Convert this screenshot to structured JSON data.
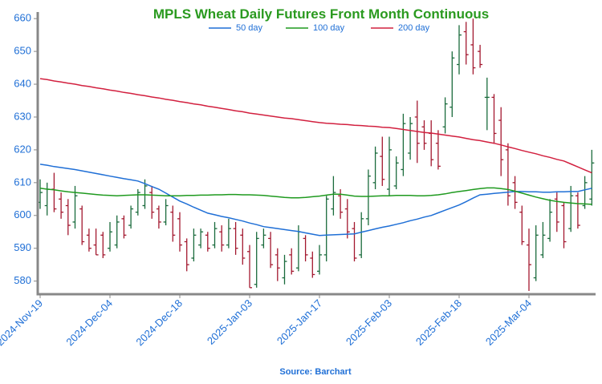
{
  "chart_data": {
    "type": "ohlc",
    "title": "MPLS Wheat Daily Futures Front Month Continuous",
    "source": "Source: Barchart",
    "categories": [
      "2024-Nov-19",
      null,
      null,
      null,
      null,
      null,
      null,
      null,
      null,
      null,
      "2024-Dec-04",
      null,
      null,
      null,
      null,
      null,
      null,
      null,
      null,
      null,
      "2024-Dec-18",
      null,
      null,
      null,
      null,
      null,
      null,
      null,
      null,
      null,
      "2025-Jan-03",
      null,
      null,
      null,
      null,
      null,
      null,
      null,
      null,
      null,
      "2025-Jan-17",
      null,
      null,
      null,
      null,
      null,
      null,
      null,
      null,
      null,
      "2025-Feb-03",
      null,
      null,
      null,
      null,
      null,
      null,
      null,
      null,
      null,
      "2025-Feb-18",
      null,
      null,
      null,
      null,
      null,
      null,
      null,
      null,
      null,
      "2025-Mar-04",
      null,
      null,
      null,
      null,
      null,
      null,
      null,
      null,
      null
    ],
    "open": [
      604,
      603,
      608,
      605,
      603,
      598,
      602,
      594,
      591,
      594,
      590,
      591,
      599,
      597,
      601,
      603,
      607,
      602,
      598,
      601,
      599,
      592,
      587,
      591,
      594,
      591,
      595,
      591,
      596,
      594,
      589,
      579,
      591,
      593,
      588,
      581,
      588,
      584,
      593,
      587,
      583,
      588,
      602,
      606,
      602,
      596,
      588,
      599,
      610,
      618,
      608,
      609,
      614,
      619,
      630,
      627,
      625,
      622,
      627,
      633,
      646,
      656,
      652,
      650,
      636,
      636,
      629,
      620,
      610,
      601,
      591,
      581,
      588,
      593,
      605,
      603,
      596,
      606,
      603,
      605
    ],
    "high": [
      611,
      610,
      613,
      607,
      605,
      609,
      603,
      596,
      596,
      595,
      598,
      600,
      600,
      603,
      608,
      611,
      609,
      603,
      605,
      603,
      601,
      593,
      596,
      596,
      595,
      598,
      597,
      599,
      598,
      596,
      591,
      595,
      596,
      595,
      590,
      588,
      590,
      597,
      594,
      589,
      591,
      606,
      612,
      608,
      605,
      598,
      601,
      614,
      621,
      624,
      624,
      618,
      631,
      630,
      635,
      629,
      629,
      626,
      636,
      650,
      658,
      659,
      660,
      652,
      642,
      637,
      633,
      622,
      612,
      603,
      596,
      597,
      598,
      605,
      607,
      604,
      609,
      607,
      612,
      620
    ],
    "low": [
      602,
      600,
      601,
      599,
      594,
      596,
      591,
      589,
      588,
      587,
      589,
      590,
      593,
      596,
      600,
      602,
      599,
      596,
      597,
      592,
      589,
      583,
      586,
      590,
      589,
      590,
      589,
      590,
      588,
      585,
      578,
      578,
      590,
      584,
      580,
      579,
      582,
      583,
      586,
      581,
      582,
      586,
      600,
      599,
      593,
      586,
      587,
      597,
      608,
      609,
      606,
      608,
      612,
      617,
      616,
      620,
      615,
      614,
      625,
      630,
      643,
      646,
      643,
      645,
      626,
      622,
      612,
      603,
      602,
      591,
      577,
      580,
      587,
      592,
      595,
      590,
      595,
      596,
      602,
      603
    ],
    "close": [
      607,
      608,
      602,
      601,
      597,
      606,
      592,
      590,
      588,
      588,
      595,
      598,
      594,
      602,
      607,
      609,
      601,
      598,
      603,
      594,
      591,
      585,
      594,
      595,
      590,
      596,
      591,
      596,
      590,
      587,
      578,
      593,
      594,
      585,
      584,
      586,
      583,
      595,
      588,
      582,
      588,
      605,
      607,
      601,
      595,
      587,
      599,
      612,
      619,
      611,
      620,
      616,
      628,
      628,
      622,
      622,
      617,
      615,
      634,
      648,
      655,
      649,
      645,
      646,
      636,
      625,
      617,
      606,
      604,
      592,
      585,
      594,
      594,
      601,
      598,
      592,
      606,
      597,
      610,
      616
    ],
    "up_color": "#1a6b3c",
    "down_color": "#a3182f",
    "series": [
      {
        "name": "50 day",
        "color": "#1f6fd6",
        "values": [
          615.6,
          615.3,
          614.9,
          614.6,
          614.3,
          614.0,
          613.6,
          613.2,
          612.8,
          612.4,
          612.0,
          611.6,
          611.2,
          610.9,
          610.5,
          609.7,
          608.8,
          608.0,
          606.8,
          605.6,
          604.4,
          603.5,
          602.5,
          601.6,
          600.7,
          600.2,
          599.7,
          599.3,
          598.8,
          598.3,
          597.7,
          597.2,
          596.6,
          596.3,
          596.0,
          595.7,
          595.4,
          595.1,
          594.7,
          594.3,
          593.9,
          594.0,
          594.1,
          594.2,
          594.3,
          594.4,
          594.9,
          595.4,
          595.9,
          596.4,
          596.8,
          597.3,
          597.8,
          598.4,
          598.9,
          599.5,
          600.0,
          600.8,
          601.6,
          602.4,
          603.2,
          604.2,
          605.3,
          606.3,
          606.5,
          606.7,
          606.9,
          607.1,
          607.3,
          607.3,
          607.2,
          607.2,
          607.1,
          607.1,
          607.2,
          607.2,
          607.3,
          607.3,
          607.8,
          608.3
        ]
      },
      {
        "name": "100 day",
        "color": "#1f9a1f",
        "values": [
          608.3,
          608.0,
          607.8,
          607.5,
          607.2,
          607.0,
          606.8,
          606.6,
          606.4,
          606.2,
          606.1,
          606.0,
          606.1,
          606.2,
          606.3,
          606.3,
          606.2,
          606.1,
          606.0,
          606.0,
          606.0,
          606.1,
          606.1,
          606.2,
          606.2,
          606.3,
          606.3,
          606.4,
          606.4,
          606.3,
          606.3,
          606.2,
          606.1,
          605.9,
          605.7,
          605.5,
          605.4,
          605.4,
          605.5,
          605.7,
          605.9,
          606.2,
          606.5,
          606.5,
          606.2,
          605.9,
          605.8,
          605.8,
          605.9,
          606.0,
          606.0,
          606.1,
          606.1,
          606.1,
          606.0,
          606.0,
          606.1,
          606.3,
          606.6,
          607.0,
          607.3,
          607.6,
          607.9,
          608.2,
          608.4,
          608.4,
          608.2,
          607.9,
          607.4,
          606.8,
          606.2,
          605.6,
          605.1,
          604.6,
          604.3,
          604.0,
          603.8,
          603.6,
          603.5,
          603.4
        ]
      },
      {
        "name": "200 day",
        "color": "#d2203f",
        "values": [
          641.7,
          641.4,
          641.0,
          640.7,
          640.3,
          640.0,
          639.6,
          639.3,
          638.9,
          638.6,
          638.2,
          637.9,
          637.5,
          637.2,
          636.8,
          636.5,
          636.1,
          635.8,
          635.4,
          635.1,
          634.7,
          634.4,
          634.0,
          633.7,
          633.3,
          633.0,
          632.6,
          632.3,
          631.9,
          631.6,
          631.2,
          630.9,
          630.6,
          630.3,
          630.0,
          629.7,
          629.5,
          629.2,
          628.9,
          628.6,
          628.3,
          628.1,
          628.0,
          627.8,
          627.7,
          627.5,
          627.4,
          627.2,
          627.1,
          626.9,
          626.8,
          626.5,
          626.2,
          625.9,
          625.6,
          625.3,
          625.1,
          624.8,
          624.5,
          624.2,
          623.9,
          623.5,
          623.1,
          622.8,
          622.4,
          622.0,
          621.5,
          620.9,
          620.4,
          619.8,
          619.3,
          618.8,
          618.2,
          617.7,
          617.1,
          616.6,
          615.7,
          614.8,
          613.9,
          613.0
        ]
      }
    ],
    "ylim": [
      576,
      662
    ],
    "yticks": [
      580,
      590,
      600,
      610,
      620,
      630,
      640,
      650,
      660
    ],
    "legend": "top",
    "grid": false
  }
}
